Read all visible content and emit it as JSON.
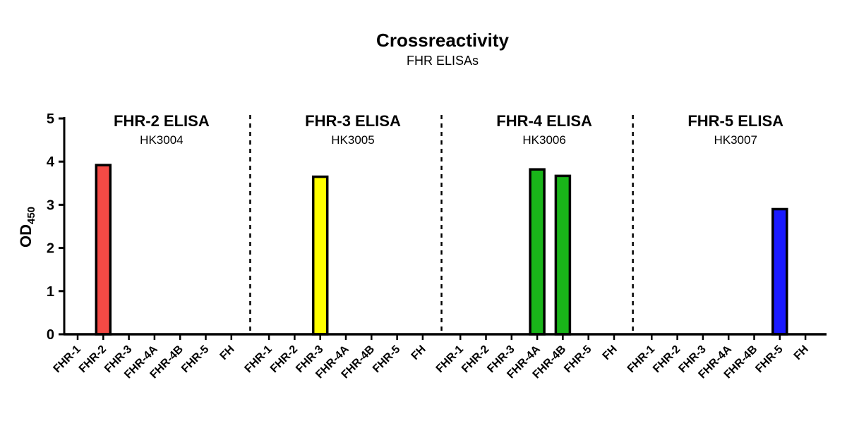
{
  "chart_data": {
    "type": "bar",
    "title": "Crossreactivity",
    "subtitle": "FHR ELISAs",
    "ylabel": "OD",
    "ylabel_subscript": "450",
    "ylim": [
      0,
      5
    ],
    "yticks": [
      0,
      1,
      2,
      3,
      4,
      5
    ],
    "grid": false,
    "panels": [
      {
        "title": "FHR-2 ELISA",
        "subtitle": "HK3004",
        "color": "#f44a45",
        "categories": [
          "FHR-1",
          "FHR-2",
          "FHR-3",
          "FHR-4A",
          "FHR-4B",
          "FHR-5",
          "FH"
        ],
        "values": [
          0,
          3.92,
          0,
          0,
          0,
          0,
          0
        ]
      },
      {
        "title": "FHR-3 ELISA",
        "subtitle": "HK3005",
        "color": "#ffff00",
        "categories": [
          "FHR-1",
          "FHR-2",
          "FHR-3",
          "FHR-4A",
          "FHR-4B",
          "FHR-5",
          "FH"
        ],
        "values": [
          0,
          0,
          3.65,
          0,
          0,
          0,
          0
        ]
      },
      {
        "title": "FHR-4 ELISA",
        "subtitle": "HK3006",
        "color": "#19b519",
        "categories": [
          "FHR-1",
          "FHR-2",
          "FHR-3",
          "FHR-4A",
          "FHR-4B",
          "FHR-5",
          "FH"
        ],
        "values": [
          0,
          0,
          0,
          3.82,
          3.67,
          0,
          0
        ]
      },
      {
        "title": "FHR-5 ELISA",
        "subtitle": "HK3007",
        "color": "#1a1aff",
        "categories": [
          "FHR-1",
          "FHR-2",
          "FHR-3",
          "FHR-4A",
          "FHR-4B",
          "FHR-5",
          "FH"
        ],
        "values": [
          0,
          0,
          0,
          0,
          0,
          2.9,
          0
        ]
      }
    ]
  }
}
